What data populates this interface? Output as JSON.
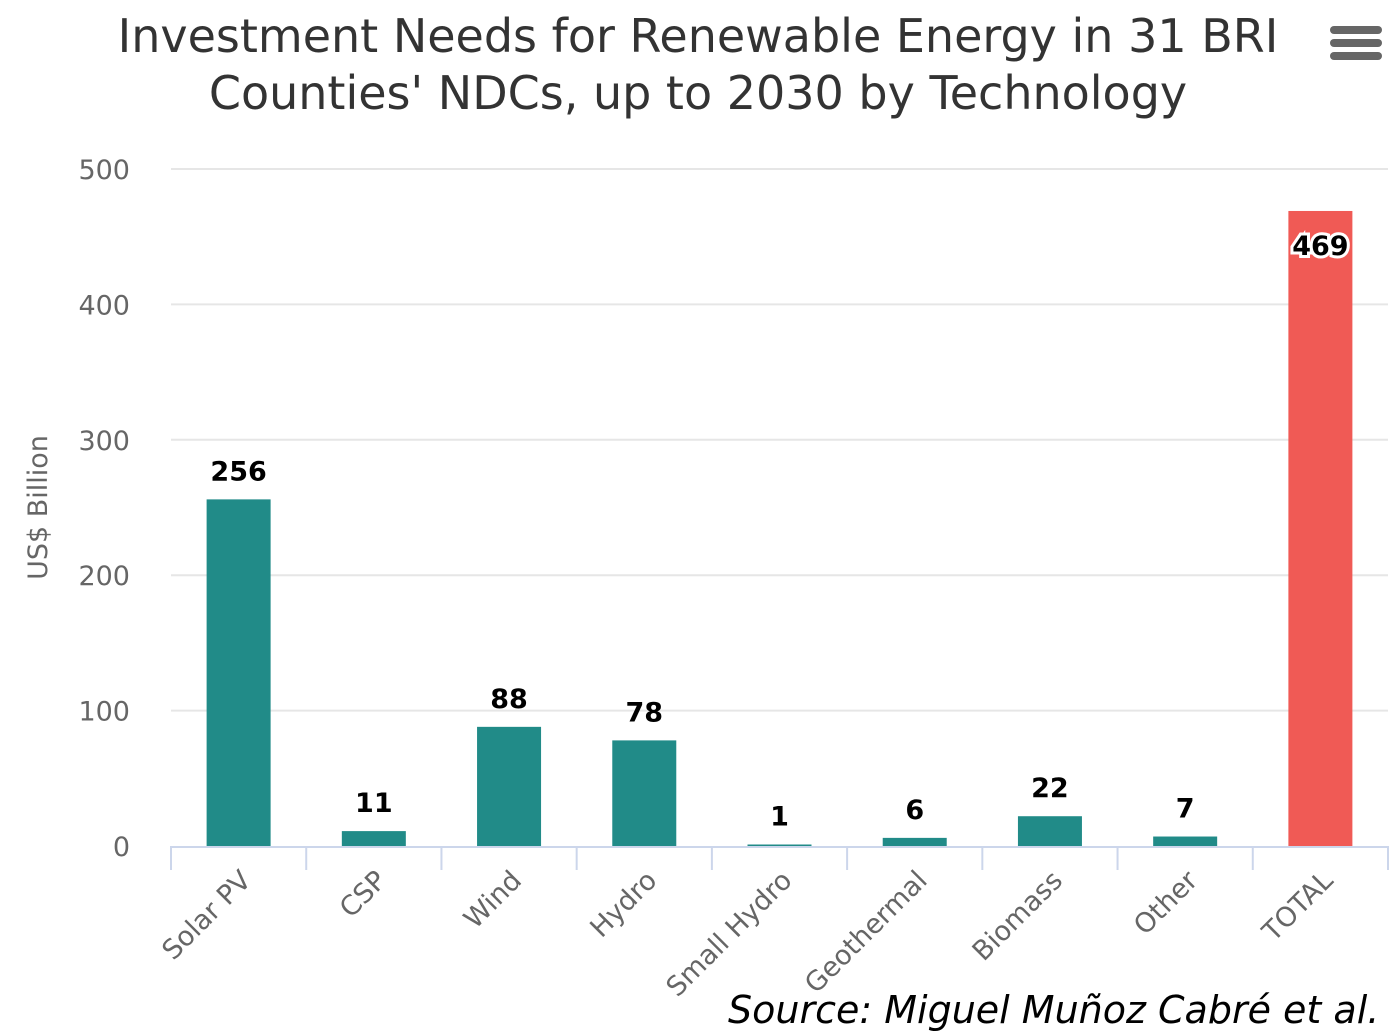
{
  "menu": {
    "icon": "hamburger-menu-icon"
  },
  "colors": {
    "bar": "#218b88",
    "total_bar": "#f05a55",
    "grid": "#e6e6e6",
    "axis": "#ccd6eb"
  },
  "chart_data": {
    "type": "bar",
    "title_lines": [
      "Investment Needs for Renewable Energy in 31 BRI",
      "Counties' NDCs, up to 2030 by Technology"
    ],
    "ylabel": "US$ Billion",
    "xlabel": "",
    "ylim": [
      0,
      500
    ],
    "yticks": [
      0,
      100,
      200,
      300,
      400,
      500
    ],
    "grid": true,
    "categories": [
      "Solar PV",
      "CSP",
      "Wind",
      "Hydro",
      "Small Hydro",
      "Geothermal",
      "Biomass",
      "Other",
      "TOTAL"
    ],
    "values": [
      256,
      11,
      88,
      78,
      1,
      6,
      22,
      7,
      469
    ],
    "data_labels": [
      "256",
      "11",
      "88",
      "78",
      "1",
      "6",
      "22",
      "7",
      "469"
    ],
    "highlighted_category": "TOTAL"
  },
  "credits": "Source: Miguel Muñoz Cabré et al."
}
